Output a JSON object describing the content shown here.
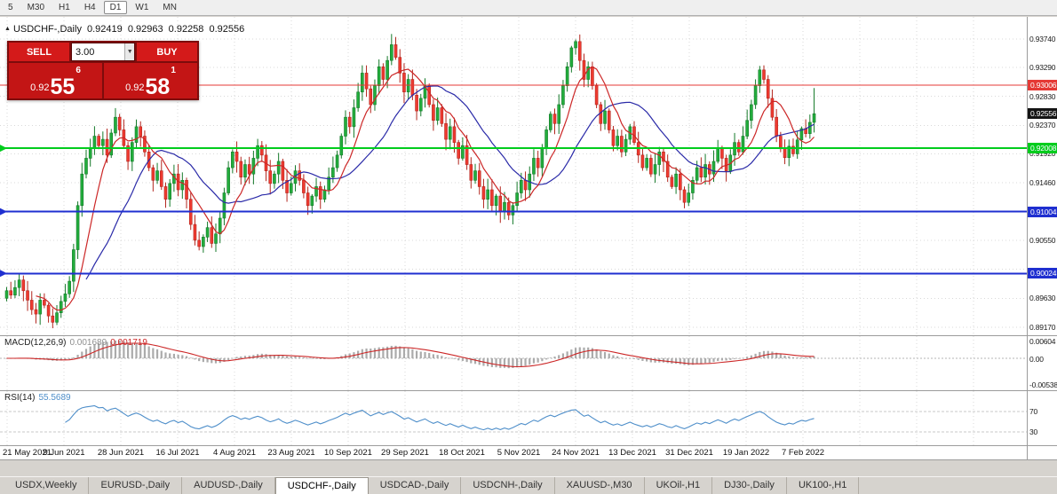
{
  "icons": {
    "chart_marker": "▲",
    "dropdown_arrow": "▼"
  },
  "toolbar": {
    "timeframes": [
      "5",
      "M30",
      "H1",
      "H4",
      "D1",
      "W1",
      "MN"
    ],
    "active": "D1"
  },
  "ohlc": {
    "symbol": "USDCHF-,Daily",
    "open": "0.92419",
    "high": "0.92963",
    "low": "0.92258",
    "close": "0.92556"
  },
  "trade": {
    "sell_label": "SELL",
    "buy_label": "BUY",
    "lot_size": "3.00",
    "sell_price": {
      "prefix": "0.92",
      "big": "55",
      "sup": "6"
    },
    "buy_price": {
      "prefix": "0.92",
      "big": "58",
      "sup": "1"
    }
  },
  "chart_data": {
    "type": "candlestick",
    "title": "USDCHF-,Daily",
    "symbol": "USDCHF",
    "timeframe": "Daily",
    "up_color": "#22ad3c",
    "down_color": "#ef3a30",
    "y_range": [
      0.8904,
      0.9396
    ],
    "y_axis_labels": [
      {
        "label": "0.93740",
        "price": 0.9374
      },
      {
        "label": "0.93290",
        "price": 0.9329
      },
      {
        "label": "0.92830",
        "price": 0.9283
      },
      {
        "label": "0.92370",
        "price": 0.9237
      },
      {
        "label": "0.91920",
        "price": 0.9192
      },
      {
        "label": "0.91460",
        "price": 0.9146
      },
      {
        "label": "0.90550",
        "price": 0.9055
      },
      {
        "label": "0.89630",
        "price": 0.8963
      },
      {
        "label": "0.89170",
        "price": 0.8917
      }
    ],
    "grid_prices": [
      0.9374,
      0.9329,
      0.9283,
      0.9237,
      0.9192,
      0.9146,
      0.9101,
      0.9055,
      0.9009,
      0.8963,
      0.8917
    ],
    "price_lines": [
      {
        "label": "0.93006",
        "price": 0.93006,
        "color": "#e53935",
        "width": 1,
        "name": "resistance-line-red"
      },
      {
        "label": "0.92008",
        "price": 0.92008,
        "color": "#00cc1d",
        "width": 2,
        "name": "support-line-green"
      },
      {
        "label": "0.91004",
        "price": 0.91004,
        "color": "#1f2fd0",
        "width": 2,
        "name": "support-line-blue-1"
      },
      {
        "label": "0.90024",
        "price": 0.90024,
        "color": "#1f2fd0",
        "width": 2,
        "name": "support-line-blue-2"
      }
    ],
    "last_price": {
      "label": "0.92556",
      "price": 0.92556,
      "color": "#141414"
    },
    "x_axis_labels": [
      "21 May 2021",
      "9 Jun 2021",
      "28 Jun 2021",
      "16 Jul 2021",
      "4 Aug 2021",
      "23 Aug 2021",
      "10 Sep 2021",
      "29 Sep 2021",
      "18 Oct 2021",
      "5 Nov 2021",
      "24 Nov 2021",
      "13 Dec 2021",
      "31 Dec 2021",
      "19 Jan 2022",
      "7 Feb 2022"
    ],
    "ma_fast": {
      "period": 8,
      "color": "#cc2727"
    },
    "ma_slow": {
      "period": 20,
      "color": "#2a2aa8"
    },
    "last_candle": {
      "open": 0.92419,
      "high": 0.92963,
      "low": 0.92258,
      "close": 0.92556
    },
    "closes": [
      0.8975,
      0.8968,
      0.898,
      0.8992,
      0.8975,
      0.896,
      0.8945,
      0.8938,
      0.896,
      0.8952,
      0.8935,
      0.8925,
      0.894,
      0.8958,
      0.897,
      0.899,
      0.904,
      0.911,
      0.916,
      0.9185,
      0.92,
      0.922,
      0.9205,
      0.9215,
      0.919,
      0.9225,
      0.925,
      0.923,
      0.9205,
      0.918,
      0.921,
      0.9235,
      0.922,
      0.9195,
      0.917,
      0.915,
      0.9165,
      0.914,
      0.912,
      0.9145,
      0.916,
      0.9135,
      0.915,
      0.912,
      0.908,
      0.9055,
      0.9045,
      0.906,
      0.9075,
      0.905,
      0.9065,
      0.909,
      0.913,
      0.917,
      0.9195,
      0.918,
      0.9155,
      0.9175,
      0.916,
      0.9185,
      0.9205,
      0.919,
      0.9165,
      0.9145,
      0.916,
      0.918,
      0.915,
      0.913,
      0.9145,
      0.9165,
      0.915,
      0.913,
      0.911,
      0.9125,
      0.914,
      0.912,
      0.9135,
      0.9155,
      0.917,
      0.919,
      0.922,
      0.925,
      0.9235,
      0.9265,
      0.929,
      0.932,
      0.9295,
      0.927,
      0.93,
      0.933,
      0.931,
      0.934,
      0.9365,
      0.9345,
      0.932,
      0.929,
      0.931,
      0.9285,
      0.926,
      0.928,
      0.93,
      0.927,
      0.9245,
      0.9265,
      0.924,
      0.9215,
      0.9235,
      0.921,
      0.9185,
      0.9205,
      0.9175,
      0.915,
      0.9165,
      0.914,
      0.912,
      0.9135,
      0.911,
      0.9125,
      0.91,
      0.9115,
      0.9095,
      0.911,
      0.913,
      0.915,
      0.9135,
      0.916,
      0.9185,
      0.917,
      0.92,
      0.923,
      0.9255,
      0.924,
      0.927,
      0.93,
      0.933,
      0.936,
      0.937,
      0.934,
      0.931,
      0.933,
      0.93,
      0.927,
      0.924,
      0.926,
      0.923,
      0.9205,
      0.922,
      0.9195,
      0.9215,
      0.9235,
      0.921,
      0.919,
      0.917,
      0.9185,
      0.916,
      0.9175,
      0.9195,
      0.918,
      0.9155,
      0.914,
      0.916,
      0.9135,
      0.9115,
      0.913,
      0.915,
      0.917,
      0.9155,
      0.9175,
      0.916,
      0.918,
      0.92,
      0.9185,
      0.9165,
      0.919,
      0.921,
      0.9195,
      0.922,
      0.9245,
      0.927,
      0.93,
      0.9325,
      0.931,
      0.928,
      0.925,
      0.922,
      0.92,
      0.9186,
      0.9204,
      0.9192,
      0.9214,
      0.9232,
      0.9224,
      0.92419,
      0.92556
    ]
  },
  "macd": {
    "name": "MACD(12,26,9)",
    "value_main": "0.001689",
    "value_signal": "0.001719",
    "params": [
      12,
      26,
      9
    ],
    "axis_labels": [
      "0.00604",
      "0.00",
      "-0.00538"
    ],
    "hist_color": "#ababab",
    "signal_color": "#cc2727"
  },
  "rsi": {
    "name": "RSI(14)",
    "value": "55.5689",
    "period": 14,
    "levels": [
      70,
      30
    ],
    "color": "#4f8fca"
  },
  "tabs": {
    "items": [
      "USDX,Weekly",
      "EURUSD-,Daily",
      "AUDUSD-,Daily",
      "USDCHF-,Daily",
      "USDCAD-,Daily",
      "USDCNH-,Daily",
      "XAUUSD-,M30",
      "UKOil-,H1",
      "DJ30-,Daily",
      "UK100-,H1"
    ],
    "active": "USDCHF-,Daily"
  }
}
